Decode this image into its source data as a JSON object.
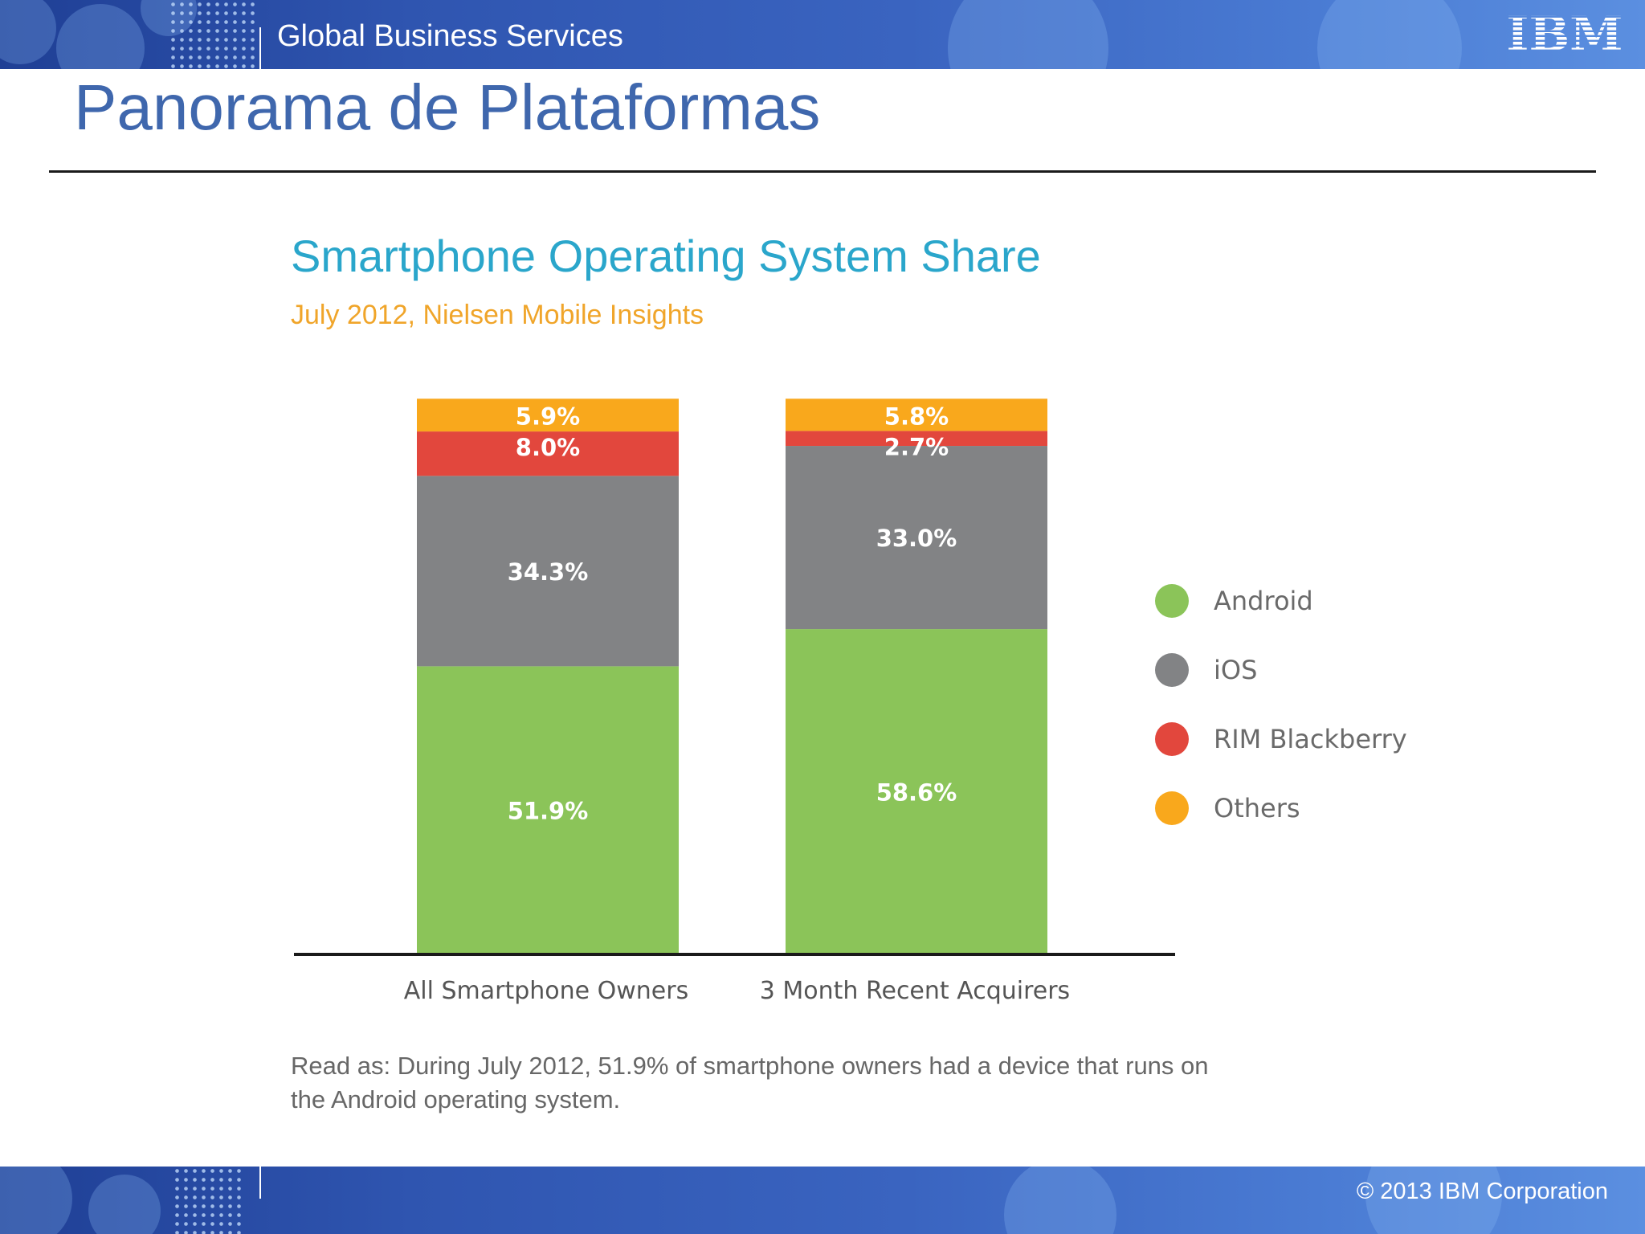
{
  "header": {
    "section": "Global Business Services",
    "logo": "IBM"
  },
  "page_title": "Panorama de Plataformas",
  "footer": {
    "copyright": "© 2013 IBM Corporation"
  },
  "colors": {
    "android": "#8bc459",
    "ios": "#828385",
    "blackberry": "#e2473d",
    "others": "#f9a81c",
    "title": "#3f67ad",
    "chart_title": "#2aa6cb",
    "chart_subtitle": "#f0a52a"
  },
  "chart_data": {
    "type": "bar",
    "stacked": true,
    "title": "Smartphone Operating System Share",
    "subtitle": "July 2012, Nielsen Mobile Insights",
    "categories": [
      "All Smartphone Owners",
      "3 Month Recent Acquirers"
    ],
    "series": [
      {
        "name": "Android",
        "values": [
          51.9,
          58.6
        ],
        "labels": [
          "51.9%",
          "58.6%"
        ],
        "color": "#8bc459"
      },
      {
        "name": "iOS",
        "values": [
          34.3,
          33.0
        ],
        "labels": [
          "34.3%",
          "33.0%"
        ],
        "color": "#828385"
      },
      {
        "name": "RIM Blackberry",
        "values": [
          8.0,
          2.7
        ],
        "labels": [
          "8.0%",
          "2.7%"
        ],
        "color": "#e2473d"
      },
      {
        "name": "Others",
        "values": [
          5.9,
          5.8
        ],
        "labels": [
          "5.9%",
          "5.8%"
        ],
        "color": "#f9a81c"
      }
    ],
    "ylim": [
      0,
      100
    ],
    "grid": false,
    "legend": "right",
    "note": "Read as: During July 2012, 51.9% of smartphone owners had a device that runs on the Android operating system."
  }
}
